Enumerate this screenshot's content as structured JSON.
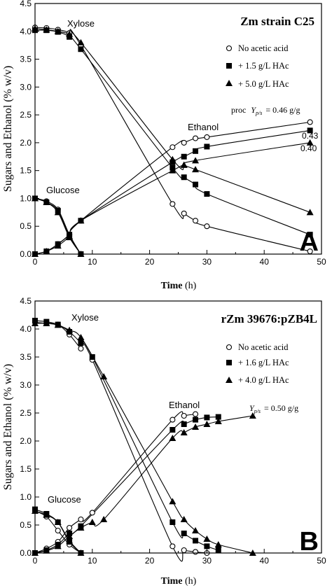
{
  "chart_data": [
    {
      "type": "scatter",
      "panel_letter": "A",
      "title": "Zm strain C25",
      "xlabel": "Time",
      "xunit": "(h)",
      "ylabel": "Sugars and Ethanol (% w/v)",
      "xlim": [
        0,
        50
      ],
      "ylim": [
        0,
        4.5
      ],
      "x_ticks": [
        "0",
        "10",
        "20",
        "30",
        "40",
        "50"
      ],
      "y_ticks": [
        "0.0",
        "0.5",
        "1.0",
        "1.5",
        "2.0",
        "2.5",
        "3.0",
        "3.5",
        "4.0",
        "4.5"
      ],
      "legend": [
        {
          "marker": "open-circle",
          "label": "No acetic acid"
        },
        {
          "marker": "filled-square",
          "label": "+ 1.5 g/L HAc"
        },
        {
          "marker": "filled-triangle",
          "label": "+ 5.0 g/L HAc"
        }
      ],
      "annotations": {
        "xylose": "Xylose",
        "glucose": "Glucose",
        "ethanol": "Ethanol",
        "yield_prefix": "proc",
        "yield_symbol": "Y",
        "yield_sub": "p/s",
        "yield_value": "= 0.46 g/g",
        "yield_2": "0.43",
        "yield_3": "0.40"
      },
      "series": [
        {
          "analyte": "xylose",
          "marker": "open-circle",
          "x": [
            0,
            2,
            4,
            6,
            8,
            24,
            26,
            28,
            30,
            48
          ],
          "y": [
            4.07,
            4.06,
            4.03,
            3.97,
            3.75,
            0.9,
            0.73,
            0.6,
            0.5,
            0.05
          ]
        },
        {
          "analyte": "xylose",
          "marker": "filled-square",
          "x": [
            0,
            2,
            4,
            6,
            8,
            24,
            26,
            28,
            30,
            48
          ],
          "y": [
            4.02,
            4.02,
            3.99,
            3.9,
            3.68,
            1.55,
            1.38,
            1.25,
            1.08,
            0.35
          ]
        },
        {
          "analyte": "xylose",
          "marker": "filled-triangle",
          "x": [
            0,
            2,
            4,
            6,
            8,
            24,
            26,
            28,
            48
          ],
          "y": [
            4.05,
            4.03,
            4.0,
            3.95,
            3.8,
            1.7,
            1.6,
            1.52,
            0.75
          ]
        },
        {
          "analyte": "glucose",
          "marker": "open-circle",
          "x": [
            0,
            2,
            4,
            6,
            8
          ],
          "y": [
            1.0,
            0.95,
            0.8,
            0.35,
            0.0
          ]
        },
        {
          "analyte": "glucose",
          "marker": "filled-square",
          "x": [
            0,
            2,
            4,
            6,
            8
          ],
          "y": [
            1.0,
            0.93,
            0.78,
            0.32,
            0.0
          ]
        },
        {
          "analyte": "glucose",
          "marker": "filled-triangle",
          "x": [
            0,
            2,
            4,
            6,
            8
          ],
          "y": [
            1.0,
            0.93,
            0.75,
            0.3,
            0.0
          ]
        },
        {
          "analyte": "ethanol",
          "marker": "open-circle",
          "x": [
            0,
            2,
            4,
            6,
            8,
            24,
            26,
            28,
            30,
            48
          ],
          "y": [
            0.0,
            0.05,
            0.18,
            0.35,
            0.6,
            1.92,
            2.0,
            2.08,
            2.1,
            2.37
          ]
        },
        {
          "analyte": "ethanol",
          "marker": "filled-square",
          "x": [
            0,
            2,
            4,
            6,
            8,
            24,
            26,
            28,
            30,
            48
          ],
          "y": [
            0.0,
            0.05,
            0.18,
            0.35,
            0.6,
            1.65,
            1.75,
            1.85,
            1.93,
            2.22
          ]
        },
        {
          "analyte": "ethanol",
          "marker": "filled-triangle",
          "x": [
            0,
            2,
            4,
            6,
            8,
            24,
            26,
            28,
            48
          ],
          "y": [
            0.0,
            0.05,
            0.15,
            0.32,
            0.6,
            1.5,
            1.6,
            1.68,
            2.0
          ]
        }
      ]
    },
    {
      "type": "scatter",
      "panel_letter": "B",
      "title": "rZm 39676:pZB4L",
      "xlabel": "Time",
      "xunit": "(h)",
      "ylabel": "Sugars and Ethanol (% w/v)",
      "xlim": [
        0,
        50
      ],
      "ylim": [
        0,
        4.5
      ],
      "x_ticks": [
        "0",
        "10",
        "20",
        "30",
        "40",
        "50"
      ],
      "y_ticks": [
        "0.0",
        "0.5",
        "1.0",
        "1.5",
        "2.0",
        "2.5",
        "3.0",
        "3.5",
        "4.0",
        "4.5"
      ],
      "legend": [
        {
          "marker": "open-circle",
          "label": "No acetic acid"
        },
        {
          "marker": "filled-square",
          "label": "+ 1.6 g/L HAc"
        },
        {
          "marker": "filled-triangle",
          "label": "+ 4.0 g/L HAc"
        }
      ],
      "annotations": {
        "xylose": "Xylose",
        "glucose": "Glucose",
        "ethanol": "Ethanol",
        "yield_prefix": "",
        "yield_symbol": "Y",
        "yield_sub": "p/s",
        "yield_value": "= 0.50 g/g"
      },
      "series": [
        {
          "analyte": "xylose",
          "marker": "open-circle",
          "x": [
            0,
            2,
            4,
            6,
            8,
            10,
            24,
            26,
            28,
            30
          ],
          "y": [
            4.12,
            4.1,
            4.08,
            3.9,
            3.65,
            3.45,
            0.12,
            0.05,
            0.02,
            0.0
          ]
        },
        {
          "analyte": "xylose",
          "marker": "filled-square",
          "x": [
            0,
            2,
            4,
            6,
            8,
            10,
            24,
            26,
            28,
            30,
            32
          ],
          "y": [
            4.15,
            4.13,
            4.08,
            3.95,
            3.75,
            3.5,
            0.55,
            0.35,
            0.22,
            0.12,
            0.05
          ]
        },
        {
          "analyte": "xylose",
          "marker": "filled-triangle",
          "x": [
            0,
            2,
            4,
            6,
            8,
            12,
            24,
            26,
            28,
            30,
            32,
            38
          ],
          "y": [
            4.1,
            4.1,
            4.07,
            3.98,
            3.85,
            3.15,
            0.92,
            0.6,
            0.4,
            0.25,
            0.15,
            0.0
          ]
        },
        {
          "analyte": "glucose",
          "marker": "open-circle",
          "x": [
            0,
            2,
            4,
            6,
            8
          ],
          "y": [
            0.75,
            0.65,
            0.4,
            0.15,
            0.0
          ]
        },
        {
          "analyte": "glucose",
          "marker": "filled-square",
          "x": [
            0,
            2,
            4,
            6,
            8
          ],
          "y": [
            0.78,
            0.7,
            0.55,
            0.2,
            0.0
          ]
        },
        {
          "analyte": "glucose",
          "marker": "filled-triangle",
          "x": [
            0,
            2,
            4,
            6,
            8
          ],
          "y": [
            0.75,
            0.68,
            0.55,
            0.22,
            0.0
          ]
        },
        {
          "analyte": "ethanol",
          "marker": "open-circle",
          "x": [
            0,
            2,
            4,
            6,
            8,
            10,
            24,
            26,
            28
          ],
          "y": [
            0.0,
            0.08,
            0.2,
            0.45,
            0.6,
            0.72,
            2.38,
            2.45,
            2.48
          ]
        },
        {
          "analyte": "ethanol",
          "marker": "filled-square",
          "x": [
            0,
            2,
            4,
            6,
            8,
            24,
            26,
            28,
            30,
            32
          ],
          "y": [
            0.0,
            0.05,
            0.15,
            0.35,
            0.48,
            2.2,
            2.3,
            2.38,
            2.42,
            2.43
          ]
        },
        {
          "analyte": "ethanol",
          "marker": "filled-triangle",
          "x": [
            0,
            2,
            4,
            6,
            8,
            10,
            12,
            24,
            26,
            28,
            30,
            32,
            38
          ],
          "y": [
            0.0,
            0.04,
            0.12,
            0.3,
            0.45,
            0.55,
            0.6,
            2.05,
            2.15,
            2.25,
            2.3,
            2.35,
            2.45
          ]
        }
      ]
    }
  ]
}
